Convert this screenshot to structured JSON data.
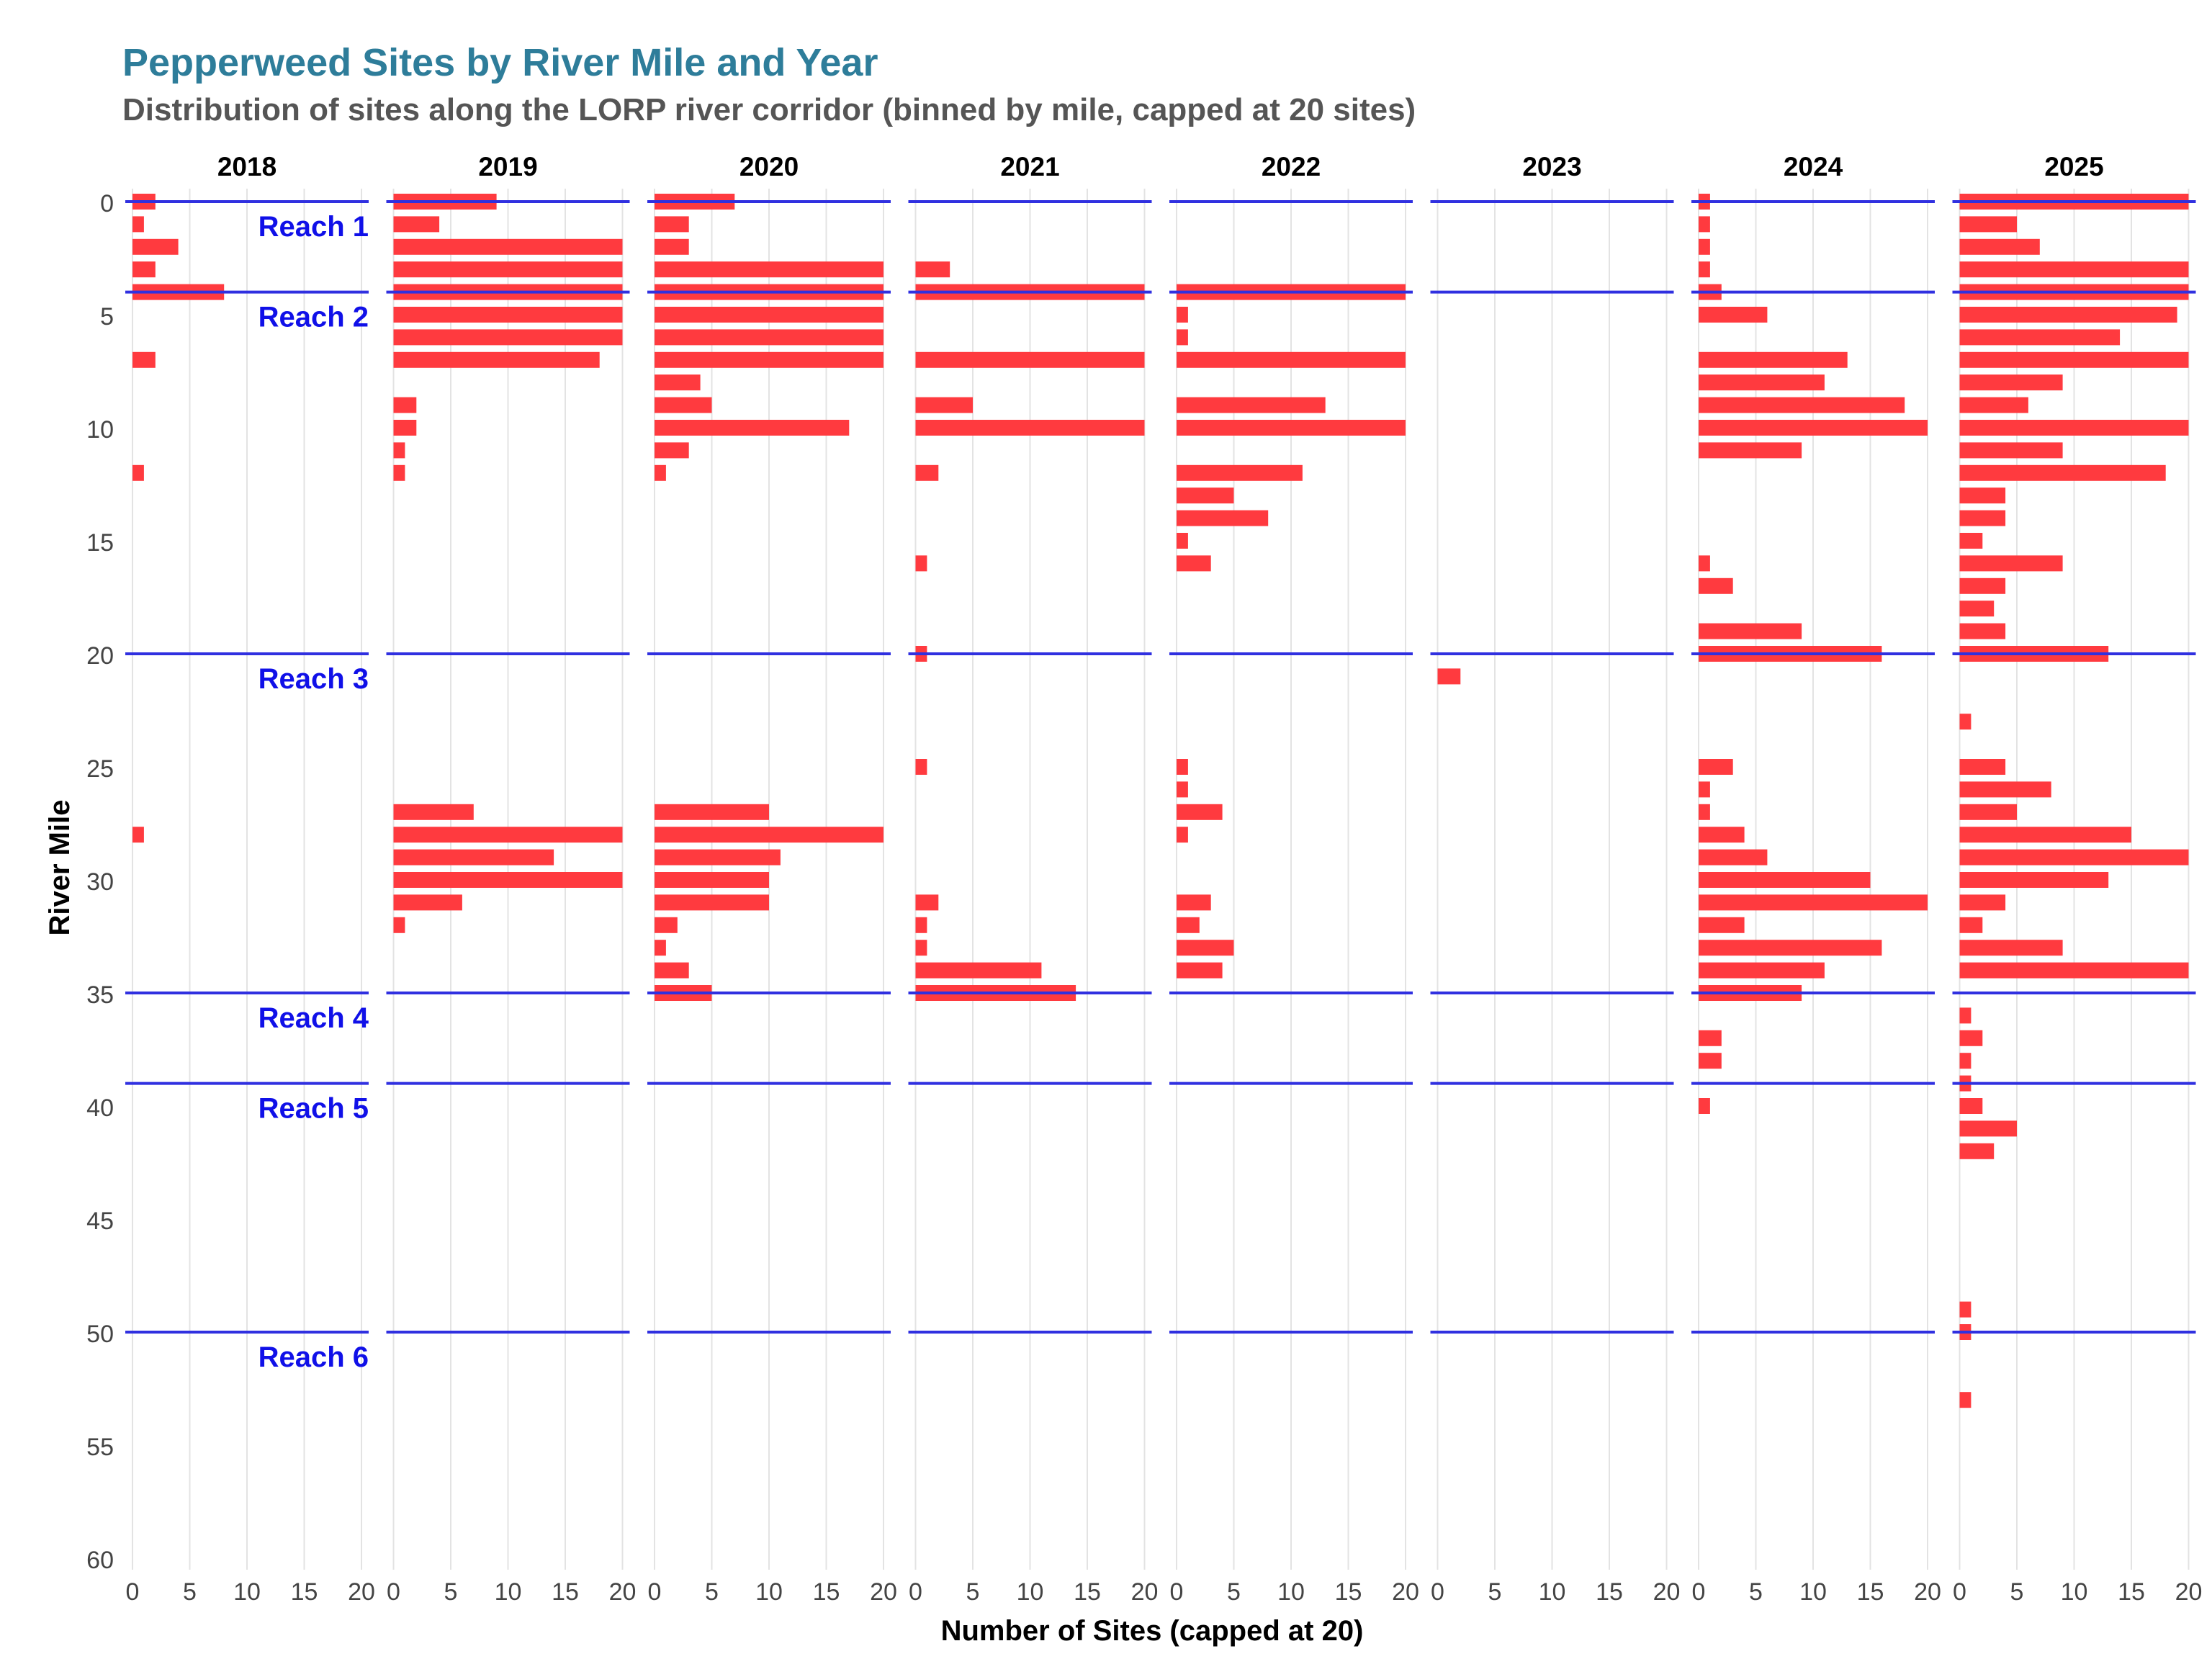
{
  "title": "Pepperweed Sites by River Mile and Year",
  "subtitle": "Distribution of sites along the LORP river corridor (binned by mile, capped at 20 sites)",
  "chart_data": {
    "type": "bar",
    "orientation": "horizontal",
    "xlabel": "Number of Sites (capped at 20)",
    "ylabel": "River Mile",
    "xlim": [
      0,
      20
    ],
    "ylim": [
      0,
      60
    ],
    "y_reversed": true,
    "xticks": [
      0,
      5,
      10,
      15,
      20
    ],
    "yticks": [
      0,
      5,
      10,
      15,
      20,
      25,
      30,
      35,
      40,
      45,
      50,
      55,
      60
    ],
    "grid": true,
    "bar_color": "#ff3a3f",
    "reach_line_color": "#3030e0",
    "reach_label_color": "#1010e8",
    "reaches": [
      {
        "label": "Reach 1",
        "start_mile": 0
      },
      {
        "label": "Reach 2",
        "start_mile": 4
      },
      {
        "label": "Reach 3",
        "start_mile": 20
      },
      {
        "label": "Reach 4",
        "start_mile": 35
      },
      {
        "label": "Reach 5",
        "start_mile": 39
      },
      {
        "label": "Reach 6",
        "start_mile": 50
      }
    ],
    "panels": [
      {
        "year": "2018",
        "bars": [
          [
            0,
            2
          ],
          [
            1,
            1
          ],
          [
            2,
            4
          ],
          [
            3,
            2
          ],
          [
            4,
            8
          ],
          [
            7,
            2
          ],
          [
            12,
            1
          ],
          [
            28,
            1
          ]
        ]
      },
      {
        "year": "2019",
        "bars": [
          [
            0,
            9
          ],
          [
            1,
            4
          ],
          [
            2,
            20
          ],
          [
            3,
            20
          ],
          [
            4,
            20
          ],
          [
            5,
            20
          ],
          [
            6,
            20
          ],
          [
            7,
            18
          ],
          [
            9,
            2
          ],
          [
            10,
            2
          ],
          [
            11,
            1
          ],
          [
            12,
            1
          ],
          [
            27,
            7
          ],
          [
            28,
            20
          ],
          [
            29,
            14
          ],
          [
            30,
            20
          ],
          [
            31,
            6
          ],
          [
            32,
            1
          ]
        ]
      },
      {
        "year": "2020",
        "bars": [
          [
            0,
            7
          ],
          [
            1,
            3
          ],
          [
            2,
            3
          ],
          [
            3,
            20
          ],
          [
            4,
            20
          ],
          [
            5,
            20
          ],
          [
            6,
            20
          ],
          [
            7,
            20
          ],
          [
            8,
            4
          ],
          [
            9,
            5
          ],
          [
            10,
            17
          ],
          [
            11,
            3
          ],
          [
            12,
            1
          ],
          [
            27,
            10
          ],
          [
            28,
            20
          ],
          [
            29,
            11
          ],
          [
            30,
            10
          ],
          [
            31,
            10
          ],
          [
            32,
            2
          ],
          [
            33,
            1
          ],
          [
            34,
            3
          ],
          [
            35,
            5
          ]
        ]
      },
      {
        "year": "2021",
        "bars": [
          [
            3,
            3
          ],
          [
            4,
            20
          ],
          [
            7,
            20
          ],
          [
            9,
            5
          ],
          [
            10,
            20
          ],
          [
            12,
            2
          ],
          [
            16,
            1
          ],
          [
            20,
            1
          ],
          [
            25,
            1
          ],
          [
            31,
            2
          ],
          [
            32,
            1
          ],
          [
            33,
            1
          ],
          [
            34,
            11
          ],
          [
            35,
            14
          ]
        ]
      },
      {
        "year": "2022",
        "bars": [
          [
            4,
            20
          ],
          [
            5,
            1
          ],
          [
            6,
            1
          ],
          [
            7,
            20
          ],
          [
            9,
            13
          ],
          [
            10,
            20
          ],
          [
            12,
            11
          ],
          [
            13,
            5
          ],
          [
            14,
            8
          ],
          [
            15,
            1
          ],
          [
            16,
            3
          ],
          [
            25,
            1
          ],
          [
            26,
            1
          ],
          [
            27,
            4
          ],
          [
            28,
            1
          ],
          [
            31,
            3
          ],
          [
            32,
            2
          ],
          [
            33,
            5
          ],
          [
            34,
            4
          ]
        ]
      },
      {
        "year": "2023",
        "bars": [
          [
            21,
            2
          ]
        ]
      },
      {
        "year": "2024",
        "bars": [
          [
            0,
            1
          ],
          [
            1,
            1
          ],
          [
            2,
            1
          ],
          [
            3,
            1
          ],
          [
            4,
            2
          ],
          [
            5,
            6
          ],
          [
            7,
            13
          ],
          [
            8,
            11
          ],
          [
            9,
            18
          ],
          [
            10,
            20
          ],
          [
            11,
            9
          ],
          [
            16,
            1
          ],
          [
            17,
            3
          ],
          [
            19,
            9
          ],
          [
            20,
            16
          ],
          [
            25,
            3
          ],
          [
            26,
            1
          ],
          [
            27,
            1
          ],
          [
            28,
            4
          ],
          [
            29,
            6
          ],
          [
            30,
            15
          ],
          [
            31,
            20
          ],
          [
            32,
            4
          ],
          [
            33,
            16
          ],
          [
            34,
            11
          ],
          [
            35,
            9
          ],
          [
            37,
            2
          ],
          [
            38,
            2
          ],
          [
            40,
            1
          ]
        ]
      },
      {
        "year": "2025",
        "bars": [
          [
            0,
            20
          ],
          [
            1,
            5
          ],
          [
            2,
            7
          ],
          [
            3,
            20
          ],
          [
            4,
            20
          ],
          [
            5,
            19
          ],
          [
            6,
            14
          ],
          [
            7,
            20
          ],
          [
            8,
            9
          ],
          [
            9,
            6
          ],
          [
            10,
            20
          ],
          [
            11,
            9
          ],
          [
            12,
            18
          ],
          [
            13,
            4
          ],
          [
            14,
            4
          ],
          [
            15,
            2
          ],
          [
            16,
            9
          ],
          [
            17,
            4
          ],
          [
            18,
            3
          ],
          [
            19,
            4
          ],
          [
            20,
            13
          ],
          [
            23,
            1
          ],
          [
            25,
            4
          ],
          [
            26,
            8
          ],
          [
            27,
            5
          ],
          [
            28,
            15
          ],
          [
            29,
            20
          ],
          [
            30,
            13
          ],
          [
            31,
            4
          ],
          [
            32,
            2
          ],
          [
            33,
            9
          ],
          [
            34,
            20
          ],
          [
            36,
            1
          ],
          [
            37,
            2
          ],
          [
            38,
            1
          ],
          [
            39,
            1
          ],
          [
            40,
            2
          ],
          [
            41,
            5
          ],
          [
            42,
            3
          ],
          [
            49,
            1
          ],
          [
            50,
            1
          ],
          [
            53,
            1
          ]
        ]
      }
    ]
  }
}
